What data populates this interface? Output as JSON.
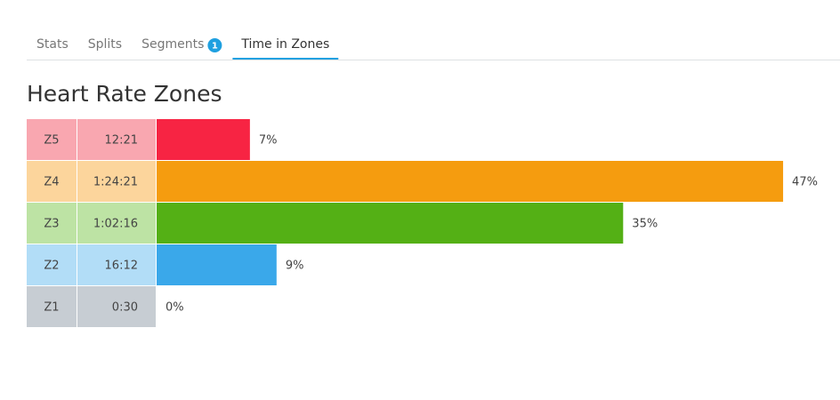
{
  "tabs": [
    {
      "label": "Stats"
    },
    {
      "label": "Splits"
    },
    {
      "label": "Segments",
      "badge": 1
    },
    {
      "label": "Time in Zones",
      "active": true
    }
  ],
  "chart_data": {
    "type": "bar",
    "orientation": "horizontal",
    "title": "Heart Rate Zones",
    "categories": [
      "Z5",
      "Z4",
      "Z3",
      "Z2",
      "Z1"
    ],
    "times": [
      "12:21",
      "1:24:21",
      "1:02:16",
      "16:12",
      "0:30"
    ],
    "values": [
      7,
      47,
      35,
      9,
      0
    ],
    "value_labels": [
      "7%",
      "47%",
      "35%",
      "9%",
      "0%"
    ],
    "colors": [
      "#f72443",
      "#f59c0f",
      "#54b015",
      "#3aa8ea",
      "#8c9aa6"
    ],
    "cell_colors": [
      "#f9a7b0",
      "#fcd59c",
      "#bde3a4",
      "#b2ddf7",
      "#c7cdd3"
    ]
  }
}
